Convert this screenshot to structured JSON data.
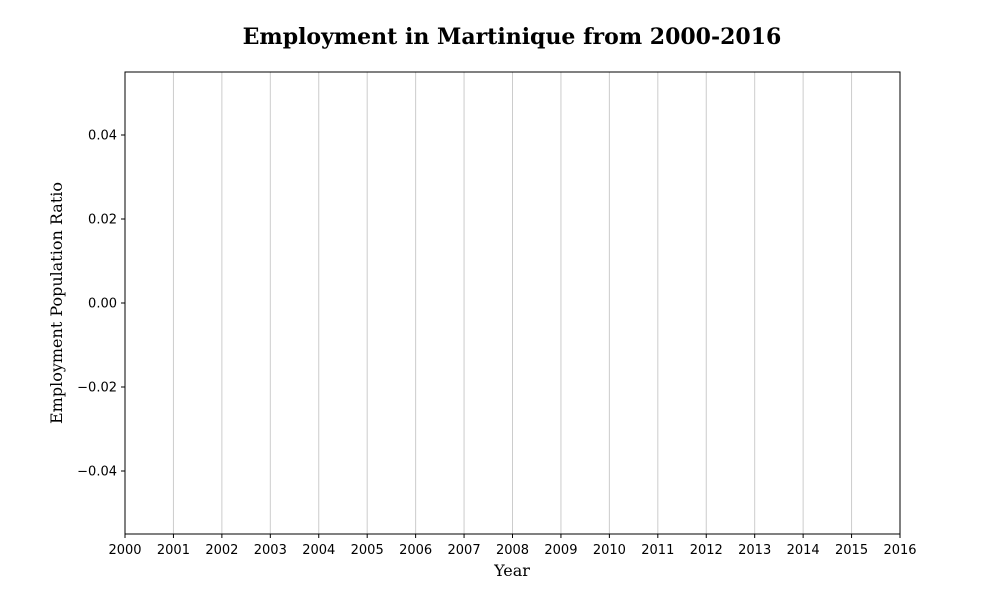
{
  "chart_data": {
    "type": "line",
    "title": "Employment in Martinique from 2000-2016",
    "xlabel": "Year",
    "ylabel": "Employment Population Ratio",
    "x_ticks": [
      "2000",
      "2001",
      "2002",
      "2003",
      "2004",
      "2005",
      "2006",
      "2007",
      "2008",
      "2009",
      "2010",
      "2011",
      "2012",
      "2013",
      "2014",
      "2015",
      "2016"
    ],
    "y_ticks": [
      "0.04",
      "0.02",
      "0.00",
      "−0.02",
      "−0.04"
    ],
    "xlim": [
      2000,
      2016
    ],
    "ylim": [
      -0.055,
      0.055
    ],
    "y_tick_values": [
      0.04,
      0.02,
      0.0,
      -0.02,
      -0.04
    ],
    "grid": "vertical",
    "series": [],
    "colors": {
      "axis": "#000000",
      "grid": "#cccccc",
      "background": "#ffffff"
    }
  }
}
